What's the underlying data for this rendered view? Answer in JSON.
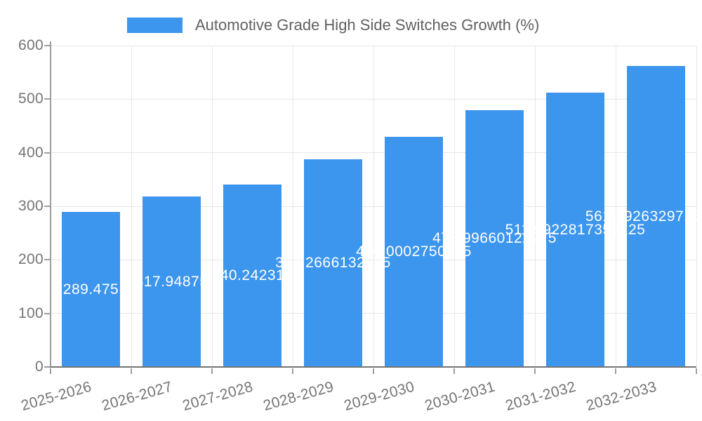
{
  "legend": {
    "label": "Automotive Grade High Side Switches Growth (%)"
  },
  "colors": {
    "bar": "#3d96ed",
    "title_text": "#616161",
    "tick_text": "#757575",
    "grid": "#e6e6e6",
    "y_axis": "#9e9e9e",
    "x_axis": "#757575",
    "value_label_text": "#ffffff"
  },
  "chart_data": {
    "type": "bar",
    "title": "Automotive Grade High Side Switches Growth (%)",
    "legend_position": "top",
    "grid": true,
    "xlabel": "",
    "ylabel": "",
    "ylim": [
      0,
      600
    ],
    "y_ticks": [
      0,
      100,
      200,
      300,
      400,
      500,
      600
    ],
    "y_tick_labels": [
      "0",
      "100",
      "200",
      "300",
      "400",
      "500",
      "600"
    ],
    "categories": [
      "2025-2026",
      "2026-2027",
      "2027-2028",
      "2028-2029",
      "2029-2030",
      "2030-2031",
      "2031-2032",
      "2032-2033"
    ],
    "values": [
      289.475,
      317.94875,
      340.242317,
      387.2666132625,
      430.0002750625,
      478.99660122975,
      511.9922817359125,
      561.4926329715624
    ],
    "value_labels": [
      "289.475",
      "317.94875",
      "340.242317",
      "387.2666132625",
      "430.0002750625",
      "478.99660122975",
      "511.9922817359125",
      "561.4926329715625"
    ]
  }
}
